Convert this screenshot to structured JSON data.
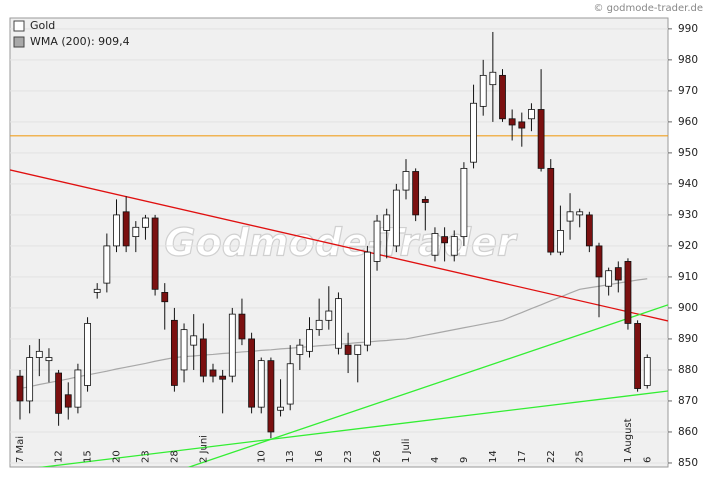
{
  "chart_data": {
    "type": "candlestick",
    "source": "© godmode-trader.de",
    "watermark": "Godmode-Trader",
    "categories": [
      "7 Mai",
      null,
      null,
      null,
      "12",
      null,
      null,
      "15",
      null,
      null,
      "20",
      null,
      null,
      "23",
      null,
      null,
      "28",
      null,
      null,
      "2 Juni",
      null,
      null,
      null,
      null,
      null,
      "10",
      null,
      null,
      "13",
      null,
      null,
      "16",
      null,
      null,
      "23",
      null,
      null,
      "26",
      null,
      null,
      "1 Juli",
      null,
      null,
      "4",
      null,
      null,
      "9",
      null,
      null,
      "14",
      null,
      null,
      "17",
      null,
      null,
      "22",
      null,
      null,
      "25",
      null,
      null,
      null,
      null,
      "1 August",
      null,
      "6"
    ],
    "series": [
      {
        "name": "Gold",
        "up_color": "#ffffff",
        "down_color": "#7b1010",
        "open": [
          878,
          870,
          884,
          883,
          879,
          872,
          868,
          875,
          905,
          908,
          920,
          931,
          923,
          926,
          929,
          905,
          896,
          880,
          888,
          890,
          880,
          878,
          878,
          898,
          890,
          868,
          883,
          867,
          869,
          885,
          886,
          893,
          896,
          887,
          888,
          885,
          888,
          915,
          925,
          920,
          938,
          944,
          935,
          917,
          923,
          917,
          923,
          947,
          965,
          972,
          975,
          961,
          960,
          961,
          964,
          945,
          918,
          928,
          930,
          930,
          920,
          907,
          913,
          915,
          895,
          875
        ],
        "high": [
          880,
          888,
          890,
          887,
          880,
          876,
          882,
          897,
          908,
          924,
          935,
          936,
          928,
          930,
          930,
          908,
          900,
          895,
          898,
          895,
          882,
          880,
          900,
          903,
          892,
          884,
          884,
          877,
          888,
          890,
          897,
          903,
          907,
          905,
          892,
          888,
          920,
          930,
          932,
          940,
          948,
          945,
          936,
          926,
          926,
          925,
          947,
          972,
          980,
          989,
          977,
          964,
          963,
          966,
          977,
          948,
          933,
          937,
          932,
          931,
          921,
          913,
          915,
          916,
          896,
          885
        ],
        "low": [
          864,
          866,
          878,
          876,
          862,
          864,
          866,
          873,
          903,
          905,
          918,
          918,
          918,
          922,
          904,
          893,
          873,
          876,
          880,
          876,
          876,
          866,
          876,
          888,
          866,
          866,
          858,
          865,
          867,
          880,
          884,
          891,
          893,
          885,
          879,
          876,
          886,
          912,
          916,
          918,
          935,
          928,
          925,
          915,
          915,
          915,
          920,
          945,
          962,
          960,
          960,
          954,
          952,
          957,
          944,
          917,
          917,
          922,
          926,
          918,
          897,
          904,
          905,
          893,
          873,
          874
        ],
        "close": [
          870,
          884,
          886,
          884,
          866,
          868,
          880,
          895,
          906,
          920,
          930,
          920,
          926,
          929,
          906,
          902,
          875,
          893,
          891,
          878,
          878,
          877,
          898,
          890,
          868,
          883,
          860,
          868,
          882,
          888,
          893,
          896,
          899,
          903,
          885,
          888,
          918,
          928,
          930,
          938,
          944,
          930,
          934,
          924,
          921,
          923,
          945,
          966,
          975,
          976,
          961,
          959,
          958,
          964,
          945,
          918,
          925,
          931,
          931,
          920,
          910,
          912,
          909,
          895,
          874,
          884
        ]
      },
      {
        "name": "WMA (200): 909,4",
        "color": "#a8a8a8",
        "values": [
          874,
          874.6,
          875.3,
          875.9,
          876.5,
          877.1,
          877.8,
          878.4,
          879,
          879.6,
          880.3,
          880.9,
          881.5,
          882.1,
          882.8,
          883.4,
          884,
          884.3,
          884.5,
          884.8,
          885,
          885.3,
          885.5,
          885.8,
          886,
          886.3,
          886.5,
          886.8,
          887,
          887.3,
          887.5,
          887.8,
          888,
          888.3,
          888.5,
          888.8,
          889,
          889.3,
          889.5,
          889.8,
          890,
          890.6,
          891.2,
          891.8,
          892.4,
          893,
          893.6,
          894.2,
          894.8,
          895.4,
          896,
          897.3,
          898.5,
          899.8,
          901,
          902.3,
          903.5,
          904.8,
          906,
          906.5,
          907,
          907.5,
          908,
          908.5,
          909,
          909.4
        ]
      }
    ],
    "lines": [
      {
        "color": "#e01010",
        "x": [
          -1.04,
          67.15
        ],
        "values": [
          944.5,
          895.8
        ]
      },
      {
        "color": "#33ee33",
        "x": [
          -0.2,
          67.15
        ],
        "values": [
          847.7,
          873.2
        ]
      },
      {
        "color": "#33ee33",
        "x": [
          16.6,
          67.15
        ],
        "values": [
          847.7,
          901
        ]
      }
    ],
    "hlines": [
      {
        "color": "#f0a020",
        "value": 955.5
      }
    ],
    "ylim": [
      848.7,
      993.5
    ],
    "yticks": [
      850,
      860,
      870,
      880,
      890,
      900,
      910,
      920,
      930,
      940,
      950,
      960,
      970,
      980,
      990
    ],
    "grid": true
  }
}
